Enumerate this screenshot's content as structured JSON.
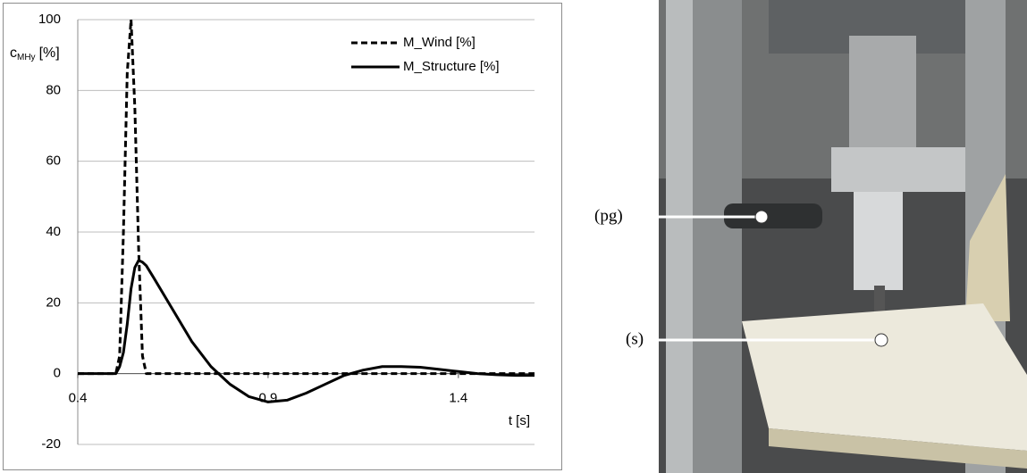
{
  "chart_data": {
    "type": "line",
    "y_label": {
      "symbol": "c",
      "subscript": "MHy",
      "unit": "[%]"
    },
    "x_label": "t [s]",
    "x": [
      0.4,
      0.45,
      0.5,
      0.51,
      0.52,
      0.53,
      0.54,
      0.55,
      0.56,
      0.57,
      0.58,
      0.6,
      0.65,
      0.7,
      0.75,
      0.8,
      0.85,
      0.9,
      0.95,
      1.0,
      1.05,
      1.1,
      1.15,
      1.2,
      1.25,
      1.3,
      1.35,
      1.4,
      1.45,
      1.5,
      1.55,
      1.6
    ],
    "series": [
      {
        "name": "M_Wind [%]",
        "color": "#000000",
        "dash": true,
        "values": [
          0,
          0,
          0,
          5,
          40,
          85,
          100,
          75,
          35,
          5,
          0,
          0,
          0,
          0,
          0,
          0,
          0,
          0,
          0,
          0,
          0,
          0,
          0,
          0,
          0,
          0,
          0,
          0,
          0,
          0,
          0,
          0
        ]
      },
      {
        "name": "M_Structure [%]",
        "color": "#000000",
        "dash": false,
        "values": [
          0,
          0,
          0,
          2,
          6,
          14,
          24,
          30,
          32,
          31.5,
          30.5,
          27,
          18,
          9,
          2,
          -3,
          -6.5,
          -8,
          -7.5,
          -5.5,
          -3,
          -0.5,
          1,
          2,
          2,
          1.8,
          1.2,
          0.6,
          0,
          -0.3,
          -0.5,
          -0.5
        ]
      }
    ],
    "xlim": [
      0.4,
      1.6
    ],
    "xticks": [
      0.4,
      0.9,
      1.4
    ],
    "ylim": [
      -20,
      100
    ],
    "yticks": [
      -20,
      0,
      20,
      40,
      60,
      80,
      100
    ],
    "grid": true,
    "legend": "top-right"
  },
  "photo": {
    "labels": [
      "(pg)",
      "(s)"
    ]
  }
}
